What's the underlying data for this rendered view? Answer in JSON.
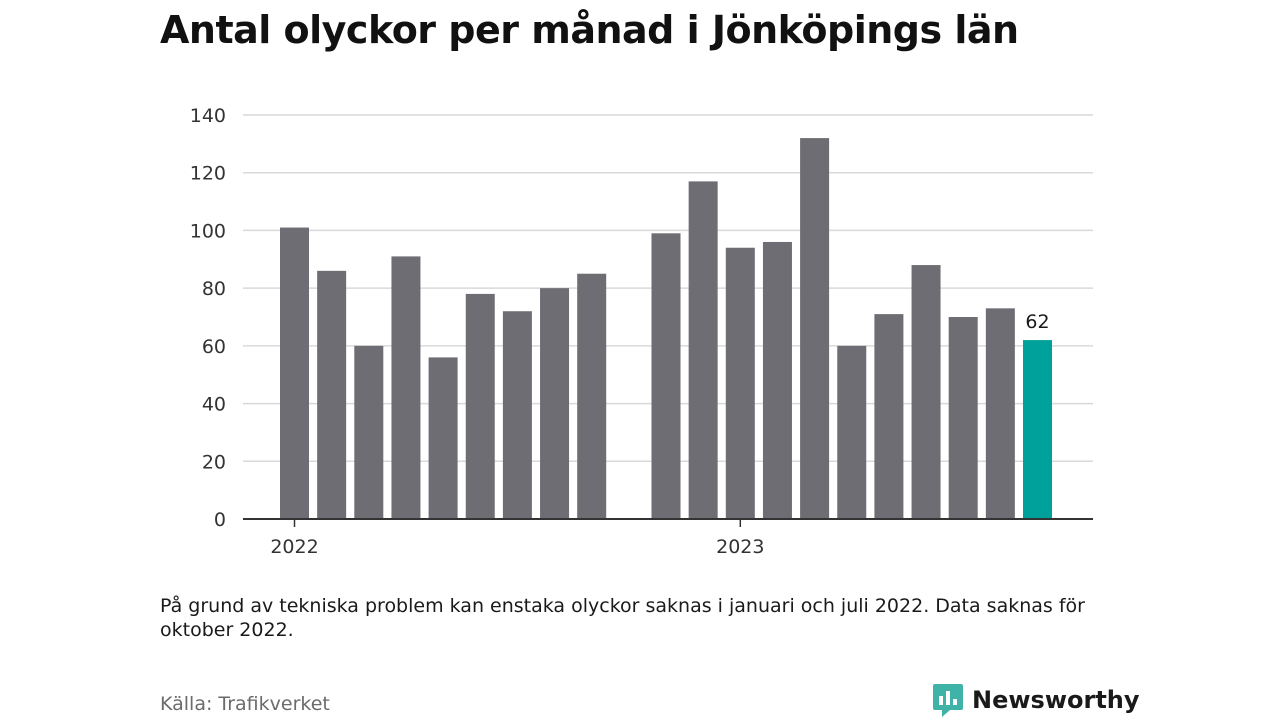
{
  "title": "Antal olyckor per månad i Jönköpings län",
  "note": "På grund av tekniska problem kan enstaka olyckor saknas i januari och juli 2022. Data saknas för oktober 2022.",
  "source": "Källa: Trafikverket",
  "brand": {
    "name": "Newsworthy",
    "icon": "newsworthy-logo-icon"
  },
  "colors": {
    "bar": "#6e6d73",
    "highlight": "#00a19a",
    "grid": "#d9d9d9",
    "axis": "#333333",
    "brand": "#3fb3a8"
  },
  "chart_data": {
    "type": "bar",
    "ylim": [
      0,
      140
    ],
    "yticks": [
      0,
      20,
      40,
      60,
      80,
      100,
      120,
      140
    ],
    "grid": true,
    "year_labels": [
      {
        "label": "2022",
        "month": "2022-01"
      },
      {
        "label": "2023",
        "month": "2023-01"
      }
    ],
    "series": [
      {
        "points": [
          {
            "month": "2022-01",
            "value": 101
          },
          {
            "month": "2022-02",
            "value": 86
          },
          {
            "month": "2022-03",
            "value": 60
          },
          {
            "month": "2022-04",
            "value": 91
          },
          {
            "month": "2022-05",
            "value": 56
          },
          {
            "month": "2022-06",
            "value": 78
          },
          {
            "month": "2022-07",
            "value": 72
          },
          {
            "month": "2022-08",
            "value": 80
          },
          {
            "month": "2022-09",
            "value": 85
          },
          {
            "month": "2022-10",
            "value": null
          },
          {
            "month": "2022-11",
            "value": 99
          },
          {
            "month": "2022-12",
            "value": 117
          },
          {
            "month": "2023-01",
            "value": 94
          },
          {
            "month": "2023-02",
            "value": 96
          },
          {
            "month": "2023-03",
            "value": 132
          },
          {
            "month": "2023-04",
            "value": 60
          },
          {
            "month": "2023-05",
            "value": 71
          },
          {
            "month": "2023-06",
            "value": 88
          },
          {
            "month": "2023-07",
            "value": 70
          },
          {
            "month": "2023-08",
            "value": 73
          },
          {
            "month": "2023-09",
            "value": 62
          }
        ]
      }
    ],
    "highlight": {
      "month": "2023-09",
      "value": 62,
      "label": "62"
    }
  }
}
